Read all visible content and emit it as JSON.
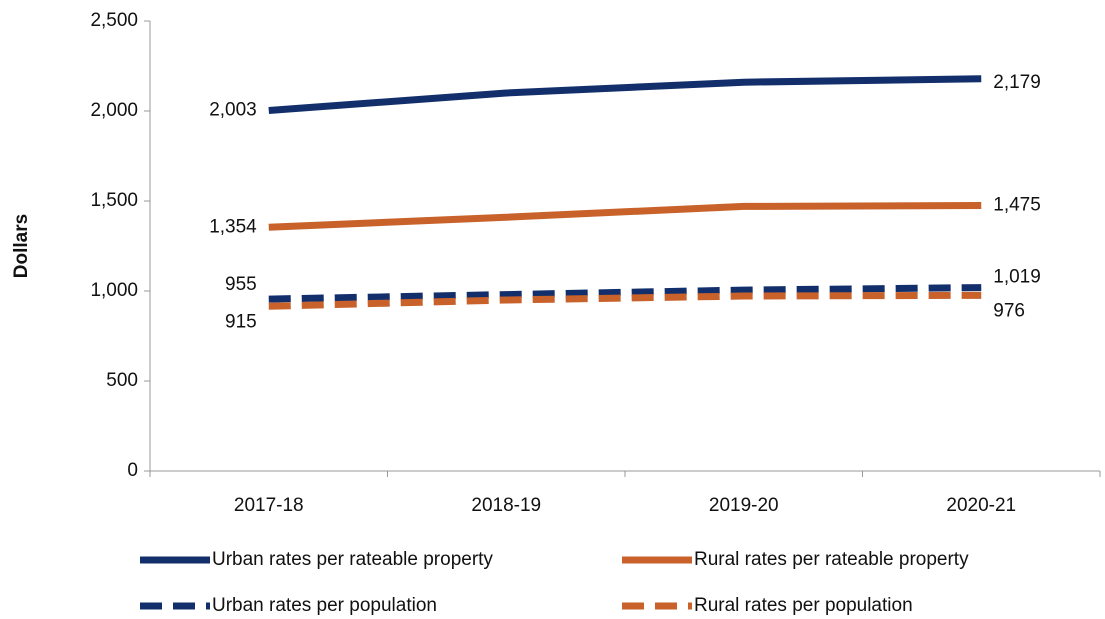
{
  "chart_data": {
    "type": "line",
    "y_label": "Dollars",
    "categories": [
      "2017-18",
      "2018-19",
      "2019-20",
      "2020-21"
    ],
    "series": [
      {
        "name": "Urban rates per rateable property",
        "color": "#132f6b",
        "style": "solid",
        "values": [
          2003,
          2100,
          2160,
          2179
        ],
        "value_labels": [
          "2,003",
          null,
          null,
          "2,179"
        ]
      },
      {
        "name": "Rural rates per rateable property",
        "color": "#c8622a",
        "style": "solid",
        "values": [
          1354,
          1410,
          1470,
          1475
        ],
        "value_labels": [
          "1,354",
          null,
          null,
          "1,475"
        ]
      },
      {
        "name": "Urban rates per population",
        "color": "#132f6b",
        "style": "dashed",
        "values": [
          955,
          980,
          1005,
          1019
        ],
        "value_labels": [
          "955",
          null,
          null,
          "1,019"
        ]
      },
      {
        "name": "Rural rates per population",
        "color": "#c8622a",
        "style": "dashed",
        "values": [
          915,
          950,
          972,
          976
        ],
        "value_labels": [
          "915",
          null,
          null,
          "976"
        ]
      }
    ],
    "ylim": [
      0,
      2500
    ],
    "yticks": [
      0,
      500,
      {
        "value": 1000,
        "label": "1,000"
      },
      {
        "value": 1500,
        "label": "1,500"
      },
      {
        "value": 2000,
        "label": "2,000"
      },
      {
        "value": 2500,
        "label": "2,500"
      }
    ],
    "grid": false
  }
}
